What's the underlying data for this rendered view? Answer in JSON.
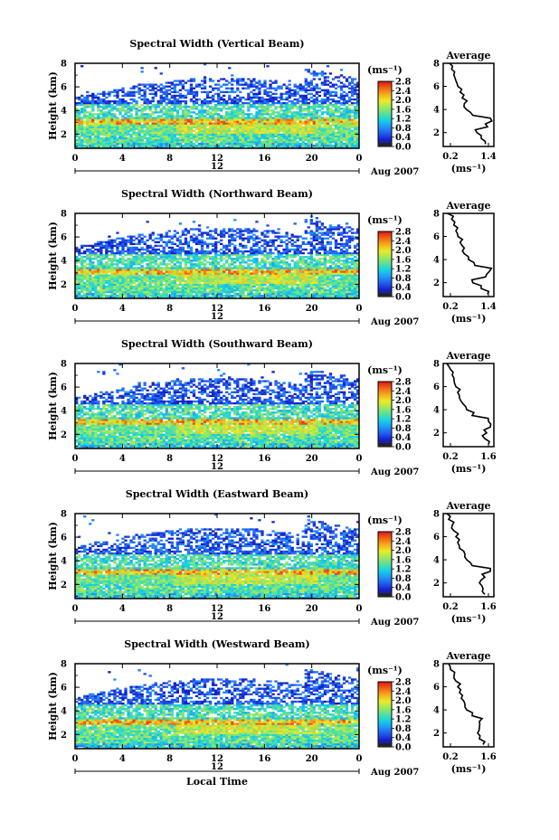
{
  "chart_data": [
    {
      "type": "heatmap",
      "title": "Spectral Width (Vertical Beam)",
      "ylabel": "Height (km)",
      "y_ticks": [
        "2",
        "4",
        "6",
        "8"
      ],
      "ylim": [
        0.8,
        8.0
      ],
      "x_ticks": [
        "0",
        "4",
        "8",
        "12",
        "16",
        "20",
        "0"
      ],
      "xlim": [
        0,
        24
      ],
      "date_marker": "12",
      "date_label": "Aug 2007",
      "colorbar": {
        "unit": "(ms⁻¹)",
        "ticks": [
          "0.0",
          "0.4",
          "0.8",
          "1.2",
          "1.6",
          "2.0",
          "2.4",
          "2.8"
        ],
        "range": [
          0,
          2.8
        ]
      },
      "profile": {
        "title": "Average",
        "xlabel": "(ms⁻¹)",
        "x_ticks": [
          "0.2",
          "1.4"
        ],
        "xlim": [
          0.2,
          1.4
        ],
        "y_ticks": [
          "2",
          "4",
          "6",
          "8"
        ],
        "heights": [
          1.0,
          1.5,
          2.0,
          2.5,
          3.0,
          3.5,
          4.0,
          4.5,
          5.0,
          5.5,
          6.0,
          6.5,
          7.0,
          7.5,
          8.0
        ],
        "values": [
          1.2,
          1.1,
          1.0,
          1.25,
          1.35,
          0.9,
          0.75,
          0.7,
          0.65,
          0.6,
          0.55,
          0.5,
          0.45,
          0.4,
          0.35
        ]
      }
    },
    {
      "type": "heatmap",
      "title": "Spectral Width (Northward Beam)",
      "ylabel": "Height (km)",
      "y_ticks": [
        "2",
        "4",
        "6",
        "8"
      ],
      "ylim": [
        0.8,
        8.0
      ],
      "x_ticks": [
        "0",
        "4",
        "8",
        "12",
        "16",
        "20",
        "0"
      ],
      "xlim": [
        0,
        24
      ],
      "date_marker": "12",
      "date_label": "Aug 2007",
      "colorbar": {
        "unit": "(ms⁻¹)",
        "ticks": [
          "0.0",
          "0.4",
          "0.8",
          "1.2",
          "1.6",
          "2.0",
          "2.4",
          "2.8"
        ],
        "range": [
          0,
          2.8
        ]
      },
      "profile": {
        "title": "Average",
        "xlabel": "(ms⁻¹)",
        "x_ticks": [
          "0.2",
          "1.4"
        ],
        "xlim": [
          0.2,
          1.4
        ],
        "y_ticks": [
          "2",
          "4",
          "6",
          "8"
        ],
        "heights": [
          1.0,
          1.5,
          2.0,
          2.5,
          3.0,
          3.5,
          4.0,
          4.5,
          5.0,
          5.5,
          6.0,
          6.5,
          7.0,
          7.5,
          8.0
        ],
        "values": [
          1.25,
          1.1,
          0.9,
          1.2,
          1.3,
          0.95,
          0.8,
          0.7,
          0.7,
          0.6,
          0.55,
          0.5,
          0.45,
          0.4,
          0.3
        ]
      }
    },
    {
      "type": "heatmap",
      "title": "Spectral Width (Southward Beam)",
      "ylabel": "Height (km)",
      "y_ticks": [
        "2",
        "4",
        "6",
        "8"
      ],
      "ylim": [
        0.8,
        8.0
      ],
      "x_ticks": [
        "0",
        "4",
        "8",
        "12",
        "16",
        "20",
        "0"
      ],
      "xlim": [
        0,
        24
      ],
      "date_marker": "12",
      "date_label": "Aug 2007",
      "colorbar": {
        "unit": "(ms⁻¹)",
        "ticks": [
          "0.0",
          "0.4",
          "0.8",
          "1.2",
          "1.6",
          "2.0",
          "2.4",
          "2.8"
        ],
        "range": [
          0,
          2.8
        ]
      },
      "profile": {
        "title": "Average",
        "xlabel": "(ms⁻¹)",
        "x_ticks": [
          "0.2",
          "1.6"
        ],
        "xlim": [
          0.2,
          1.6
        ],
        "y_ticks": [
          "2",
          "4",
          "6",
          "8"
        ],
        "heights": [
          1.0,
          1.5,
          2.0,
          2.5,
          3.0,
          3.5,
          4.0,
          4.5,
          5.0,
          5.5,
          6.0,
          6.5,
          7.0,
          7.5,
          8.0
        ],
        "values": [
          1.45,
          1.35,
          1.4,
          1.5,
          1.45,
          1.0,
          0.85,
          0.75,
          0.65,
          0.6,
          0.55,
          0.5,
          0.45,
          0.4,
          0.3
        ]
      }
    },
    {
      "type": "heatmap",
      "title": "Spectral Width (Eastward Beam)",
      "ylabel": "Height (km)",
      "y_ticks": [
        "2",
        "4",
        "6",
        "8"
      ],
      "ylim": [
        0.8,
        8.0
      ],
      "x_ticks": [
        "0",
        "4",
        "8",
        "12",
        "16",
        "20",
        "0"
      ],
      "xlim": [
        0,
        24
      ],
      "date_marker": "12",
      "date_label": "Aug 2007",
      "colorbar": {
        "unit": "(ms⁻¹)",
        "ticks": [
          "0.0",
          "0.4",
          "0.8",
          "1.2",
          "1.6",
          "2.0",
          "2.4",
          "2.8"
        ],
        "range": [
          0,
          2.8
        ]
      },
      "profile": {
        "title": "Average",
        "xlabel": "(ms⁻¹)",
        "x_ticks": [
          "0.2",
          "1.6"
        ],
        "xlim": [
          0.2,
          1.6
        ],
        "y_ticks": [
          "2",
          "4",
          "6",
          "8"
        ],
        "heights": [
          1.0,
          1.5,
          2.0,
          2.5,
          3.0,
          3.5,
          4.0,
          4.5,
          5.0,
          5.5,
          6.0,
          6.5,
          7.0,
          7.5,
          8.0
        ],
        "values": [
          1.35,
          1.3,
          1.2,
          1.35,
          1.5,
          1.0,
          0.85,
          0.8,
          0.65,
          0.6,
          0.55,
          0.5,
          0.45,
          0.35,
          0.3
        ]
      }
    },
    {
      "type": "heatmap",
      "title": "Spectral Width (Westward Beam)",
      "ylabel": "Height (km)",
      "y_ticks": [
        "2",
        "4",
        "6",
        "8"
      ],
      "ylim": [
        0.8,
        8.0
      ],
      "x_ticks": [
        "0",
        "4",
        "8",
        "12",
        "16",
        "20",
        "0"
      ],
      "xlim": [
        0,
        24
      ],
      "date_marker": "12",
      "date_label": "Aug 2007",
      "xlabel": "Local Time",
      "colorbar": {
        "unit": "(ms⁻¹)",
        "ticks": [
          "0.0",
          "0.4",
          "0.8",
          "1.2",
          "1.6",
          "2.0",
          "2.4",
          "2.8"
        ],
        "range": [
          0,
          2.8
        ]
      },
      "profile": {
        "title": "Average",
        "xlabel": "(ms⁻¹)",
        "x_ticks": [
          "0.2",
          "1.6"
        ],
        "xlim": [
          0.2,
          1.6
        ],
        "y_ticks": [
          "2",
          "4",
          "6",
          "8"
        ],
        "heights": [
          1.0,
          1.5,
          2.0,
          2.5,
          3.0,
          3.5,
          4.0,
          4.5,
          5.0,
          5.5,
          6.0,
          6.5,
          7.0,
          7.5,
          8.0
        ],
        "values": [
          1.3,
          1.2,
          1.15,
          1.2,
          1.2,
          1.0,
          0.85,
          0.8,
          0.7,
          0.65,
          0.6,
          0.55,
          0.5,
          0.4,
          0.35
        ]
      }
    }
  ]
}
